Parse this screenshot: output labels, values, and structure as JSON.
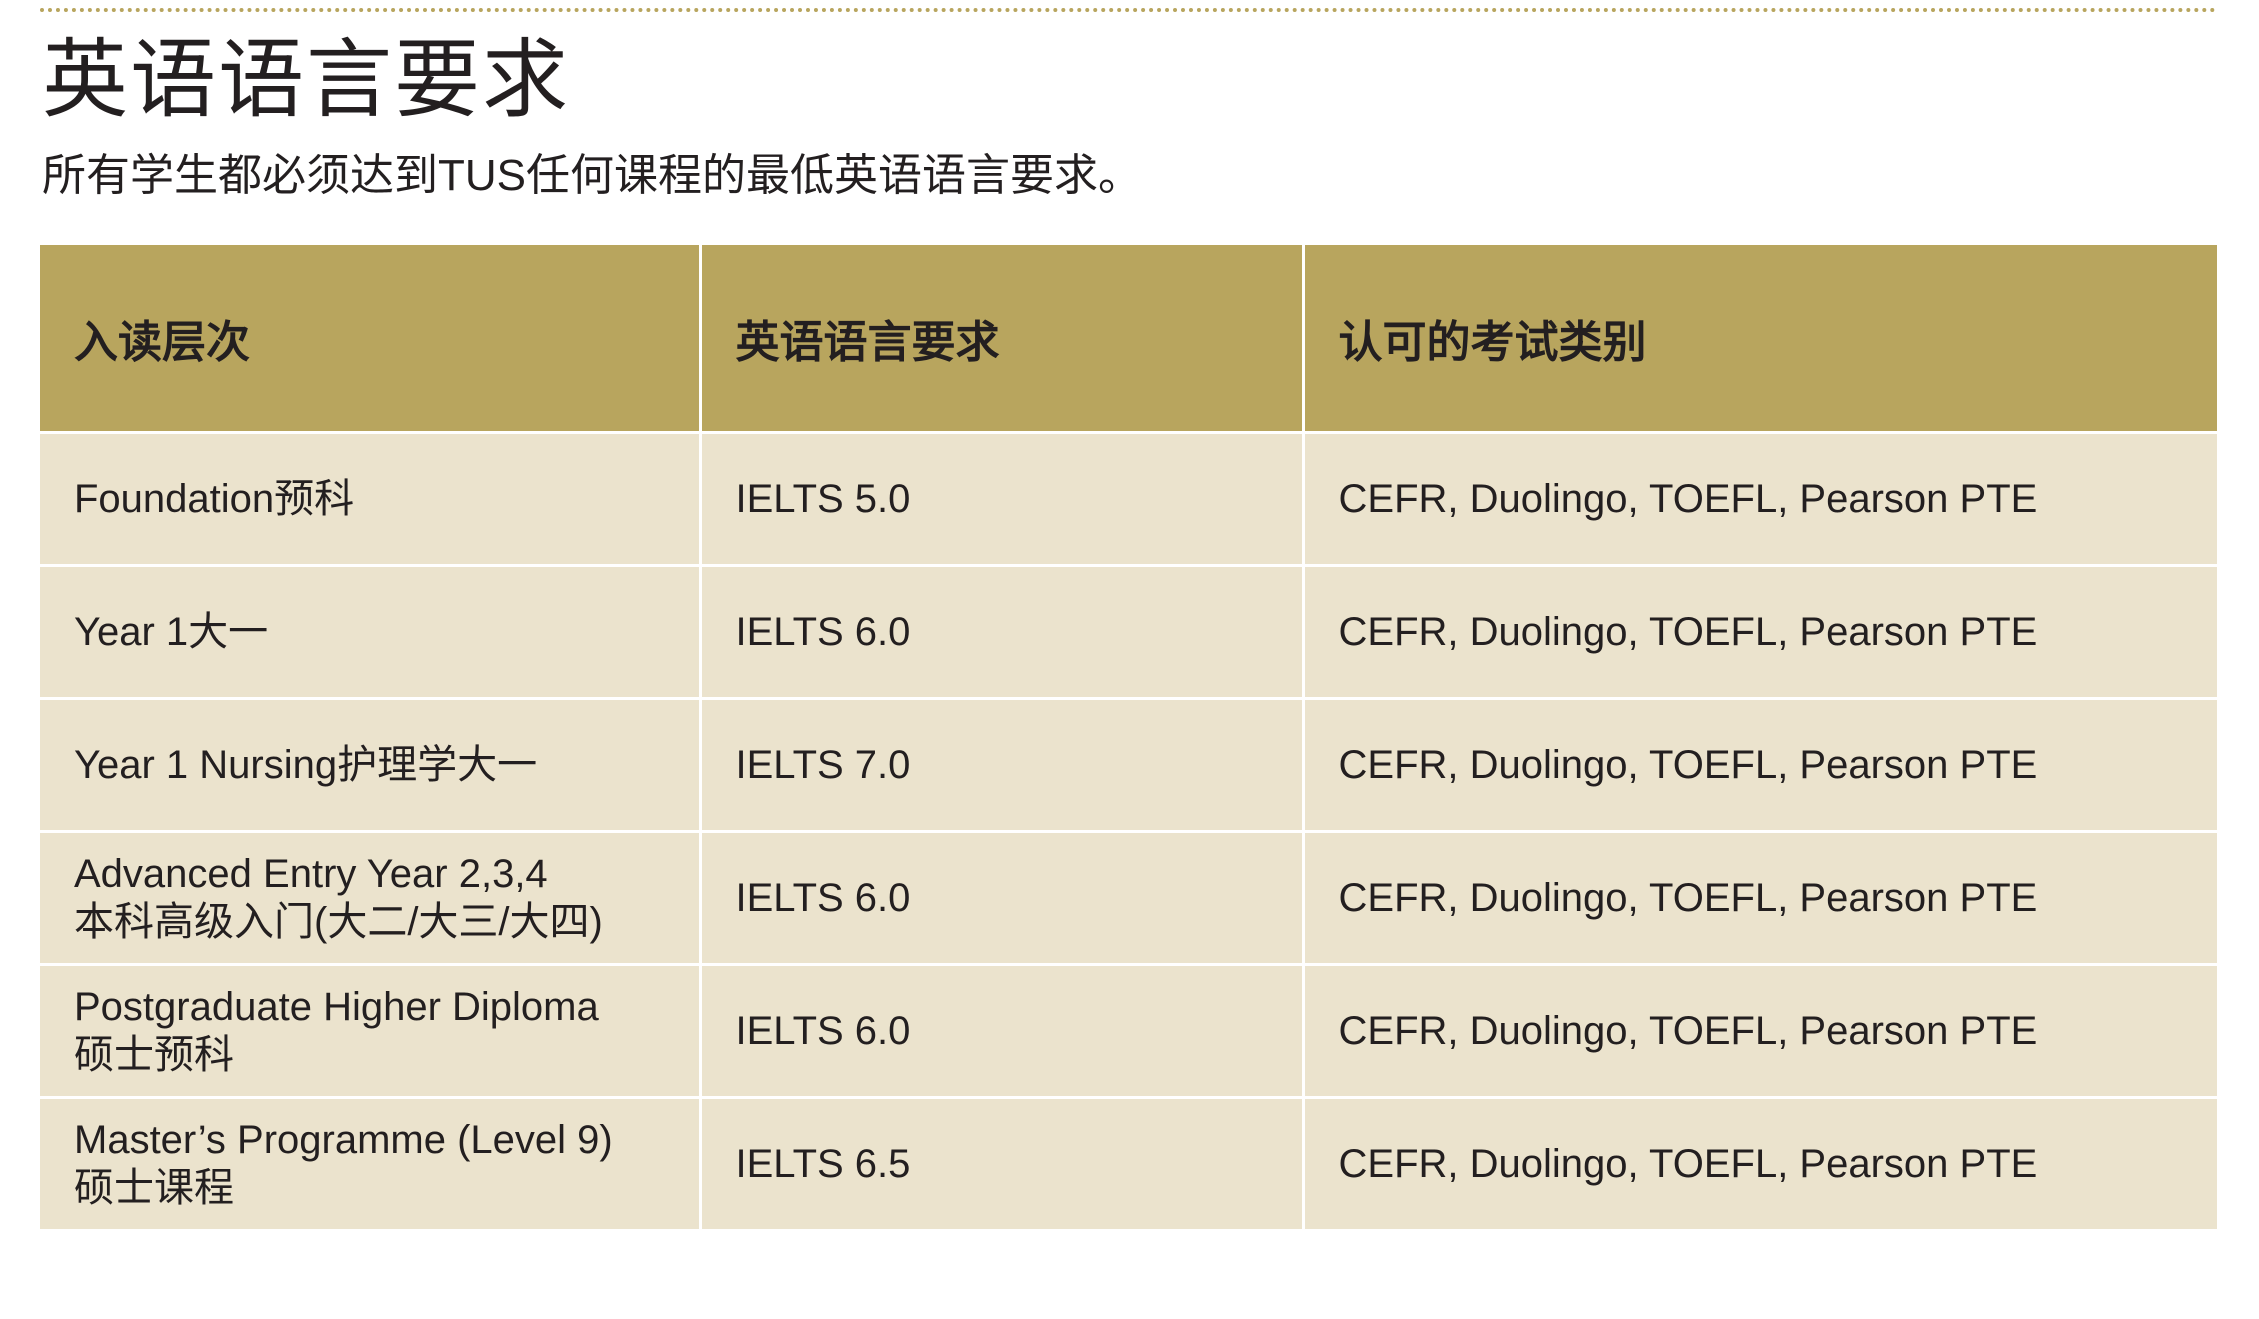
{
  "title": "英语语言要求",
  "subtitle": "所有学生都必须达到TUS任何课程的最低英语语言要求。",
  "colors": {
    "header_bg": "#b8a55e",
    "row_bg": "#ebe3cd",
    "text": "#231f20",
    "dotted_rule": "#b8a55e"
  },
  "table": {
    "headers": [
      "入读层次",
      "英语语言要求",
      "认可的考试类别"
    ],
    "rows": [
      {
        "level": "Foundation预科",
        "level_cn": "",
        "requirement": "IELTS 5.0",
        "tests": "CEFR, Duolingo, TOEFL, Pearson PTE"
      },
      {
        "level": "Year 1大一",
        "level_cn": "",
        "requirement": "IELTS 6.0",
        "tests": "CEFR, Duolingo, TOEFL, Pearson PTE"
      },
      {
        "level": "Year 1 Nursing护理学大一",
        "level_cn": "",
        "requirement": "IELTS 7.0",
        "tests": "CEFR, Duolingo, TOEFL, Pearson PTE"
      },
      {
        "level": "Advanced Entry Year 2,3,4",
        "level_cn": "本科高级入门(大二/大三/大四)",
        "requirement": "IELTS 6.0",
        "tests": "CEFR, Duolingo, TOEFL, Pearson PTE"
      },
      {
        "level": "Postgraduate Higher Diploma",
        "level_cn": "硕士预科",
        "requirement": "IELTS 6.0",
        "tests": "CEFR, Duolingo, TOEFL, Pearson PTE"
      },
      {
        "level": "Master’s Programme (Level 9)",
        "level_cn": "硕士课程",
        "requirement": "IELTS 6.5",
        "tests": "CEFR, Duolingo, TOEFL, Pearson PTE"
      }
    ]
  }
}
